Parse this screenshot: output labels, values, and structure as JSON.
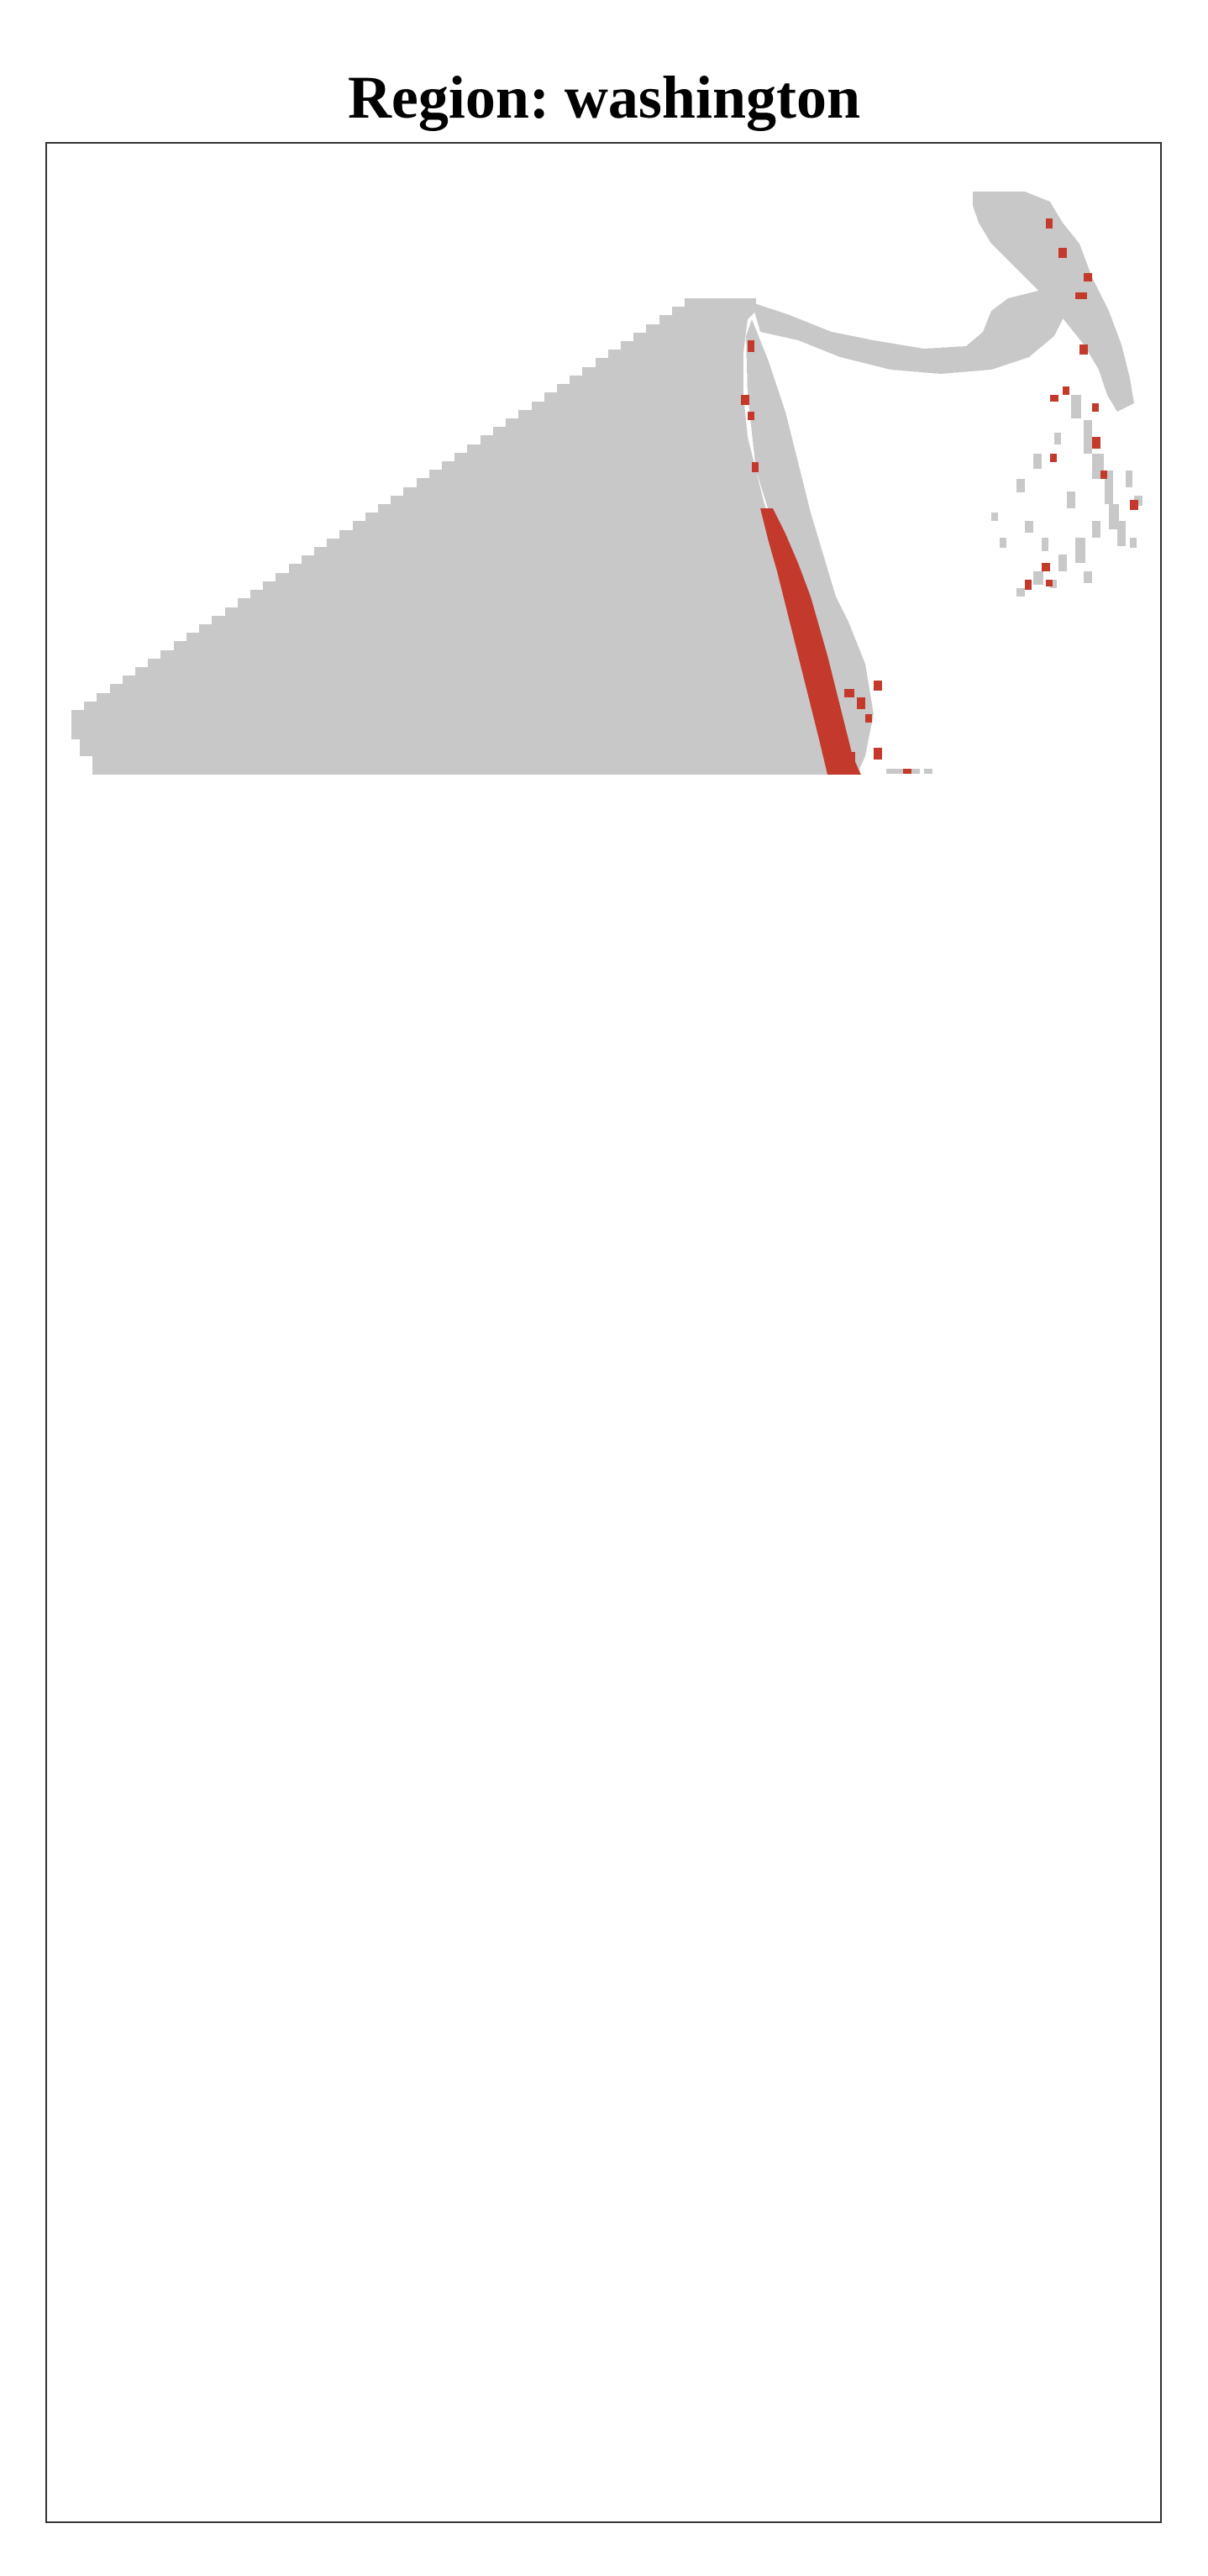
{
  "map": {
    "title": "Region: washington",
    "colors": {
      "land": "#c8c8c8",
      "highlight": "#c33a2c",
      "background": "#ffffff",
      "frame": "#333333"
    }
  }
}
